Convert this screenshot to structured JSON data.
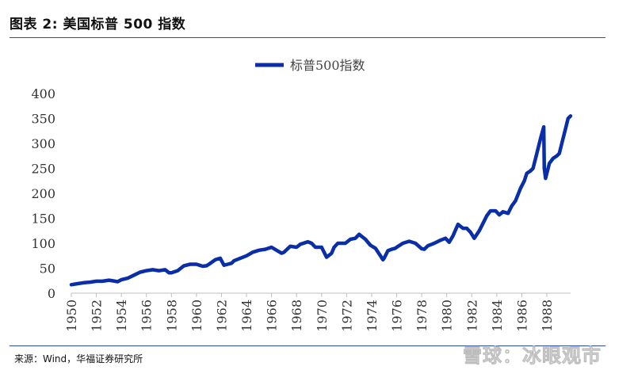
{
  "header": {
    "figure_title": "图表 2:  美国标普 500 指数"
  },
  "footer": {
    "source": "来源：Wind，华福证券研究所",
    "watermark": "雪球：冰眼观市"
  },
  "colors": {
    "series": "#0a2ea8",
    "axis": "#bfbfbf",
    "rule": "#2b4f9e"
  },
  "chart_data": {
    "type": "line",
    "title": "",
    "xlabel": "",
    "ylabel": "",
    "legend": {
      "position": "top-center",
      "entries": [
        "标普500指数"
      ]
    },
    "grid": false,
    "xlim": [
      1950,
      1989.9
    ],
    "ylim": [
      0,
      400
    ],
    "x_ticks": [
      "1950",
      "1952",
      "1954",
      "1956",
      "1958",
      "1960",
      "1962",
      "1964",
      "1966",
      "1968",
      "1970",
      "1972",
      "1974",
      "1976",
      "1978",
      "1980",
      "1982",
      "1984",
      "1986",
      "1988"
    ],
    "y_ticks": [
      "0",
      "50",
      "100",
      "150",
      "200",
      "250",
      "300",
      "350",
      "400"
    ],
    "series": [
      {
        "name": "标普500指数",
        "x": [
          1950.0,
          1950.5,
          1951.0,
          1951.5,
          1952.0,
          1952.5,
          1953.0,
          1953.5,
          1953.7,
          1954.0,
          1954.5,
          1955.0,
          1955.5,
          1956.0,
          1956.5,
          1957.0,
          1957.5,
          1957.8,
          1958.0,
          1958.5,
          1959.0,
          1959.5,
          1960.0,
          1960.5,
          1960.8,
          1961.0,
          1961.5,
          1961.9,
          1962.2,
          1962.5,
          1962.8,
          1963.0,
          1963.5,
          1964.0,
          1964.5,
          1965.0,
          1965.5,
          1966.0,
          1966.4,
          1966.8,
          1967.0,
          1967.5,
          1968.0,
          1968.3,
          1968.9,
          1969.2,
          1969.5,
          1970.0,
          1970.4,
          1970.8,
          1971.0,
          1971.3,
          1971.9,
          1972.3,
          1972.7,
          1973.0,
          1973.5,
          1973.9,
          1974.3,
          1974.7,
          1974.9,
          1975.0,
          1975.3,
          1975.6,
          1975.9,
          1976.0,
          1976.5,
          1977.0,
          1977.5,
          1978.0,
          1978.2,
          1978.5,
          1978.8,
          1979.0,
          1979.5,
          1979.9,
          1980.2,
          1980.5,
          1980.9,
          1981.3,
          1981.6,
          1981.9,
          1982.2,
          1982.6,
          1982.9,
          1983.2,
          1983.5,
          1983.9,
          1984.2,
          1984.5,
          1984.9,
          1985.2,
          1985.5,
          1985.9,
          1986.2,
          1986.4,
          1986.7,
          1986.9,
          1987.2,
          1987.5,
          1987.75,
          1987.8,
          1987.9,
          1988.0,
          1988.2,
          1988.5,
          1988.8,
          1989.0,
          1989.2,
          1989.5,
          1989.7,
          1989.9
        ],
        "values": [
          17,
          19,
          21,
          22,
          24,
          24,
          26,
          24,
          23,
          27,
          30,
          36,
          42,
          45,
          47,
          45,
          47,
          41,
          41,
          45,
          55,
          58,
          58,
          54,
          55,
          58,
          67,
          70,
          56,
          58,
          60,
          65,
          70,
          75,
          82,
          86,
          88,
          92,
          86,
          80,
          82,
          94,
          92,
          98,
          103,
          100,
          92,
          92,
          72,
          80,
          92,
          100,
          100,
          108,
          110,
          118,
          108,
          96,
          90,
          75,
          67,
          70,
          85,
          88,
          90,
          92,
          100,
          104,
          100,
          89,
          88,
          95,
          98,
          100,
          106,
          110,
          102,
          115,
          138,
          130,
          130,
          122,
          110,
          125,
          140,
          155,
          165,
          165,
          157,
          163,
          160,
          175,
          185,
          210,
          225,
          240,
          245,
          250,
          280,
          310,
          333,
          250,
          230,
          240,
          260,
          270,
          275,
          280,
          300,
          330,
          350,
          355
        ]
      }
    ]
  }
}
